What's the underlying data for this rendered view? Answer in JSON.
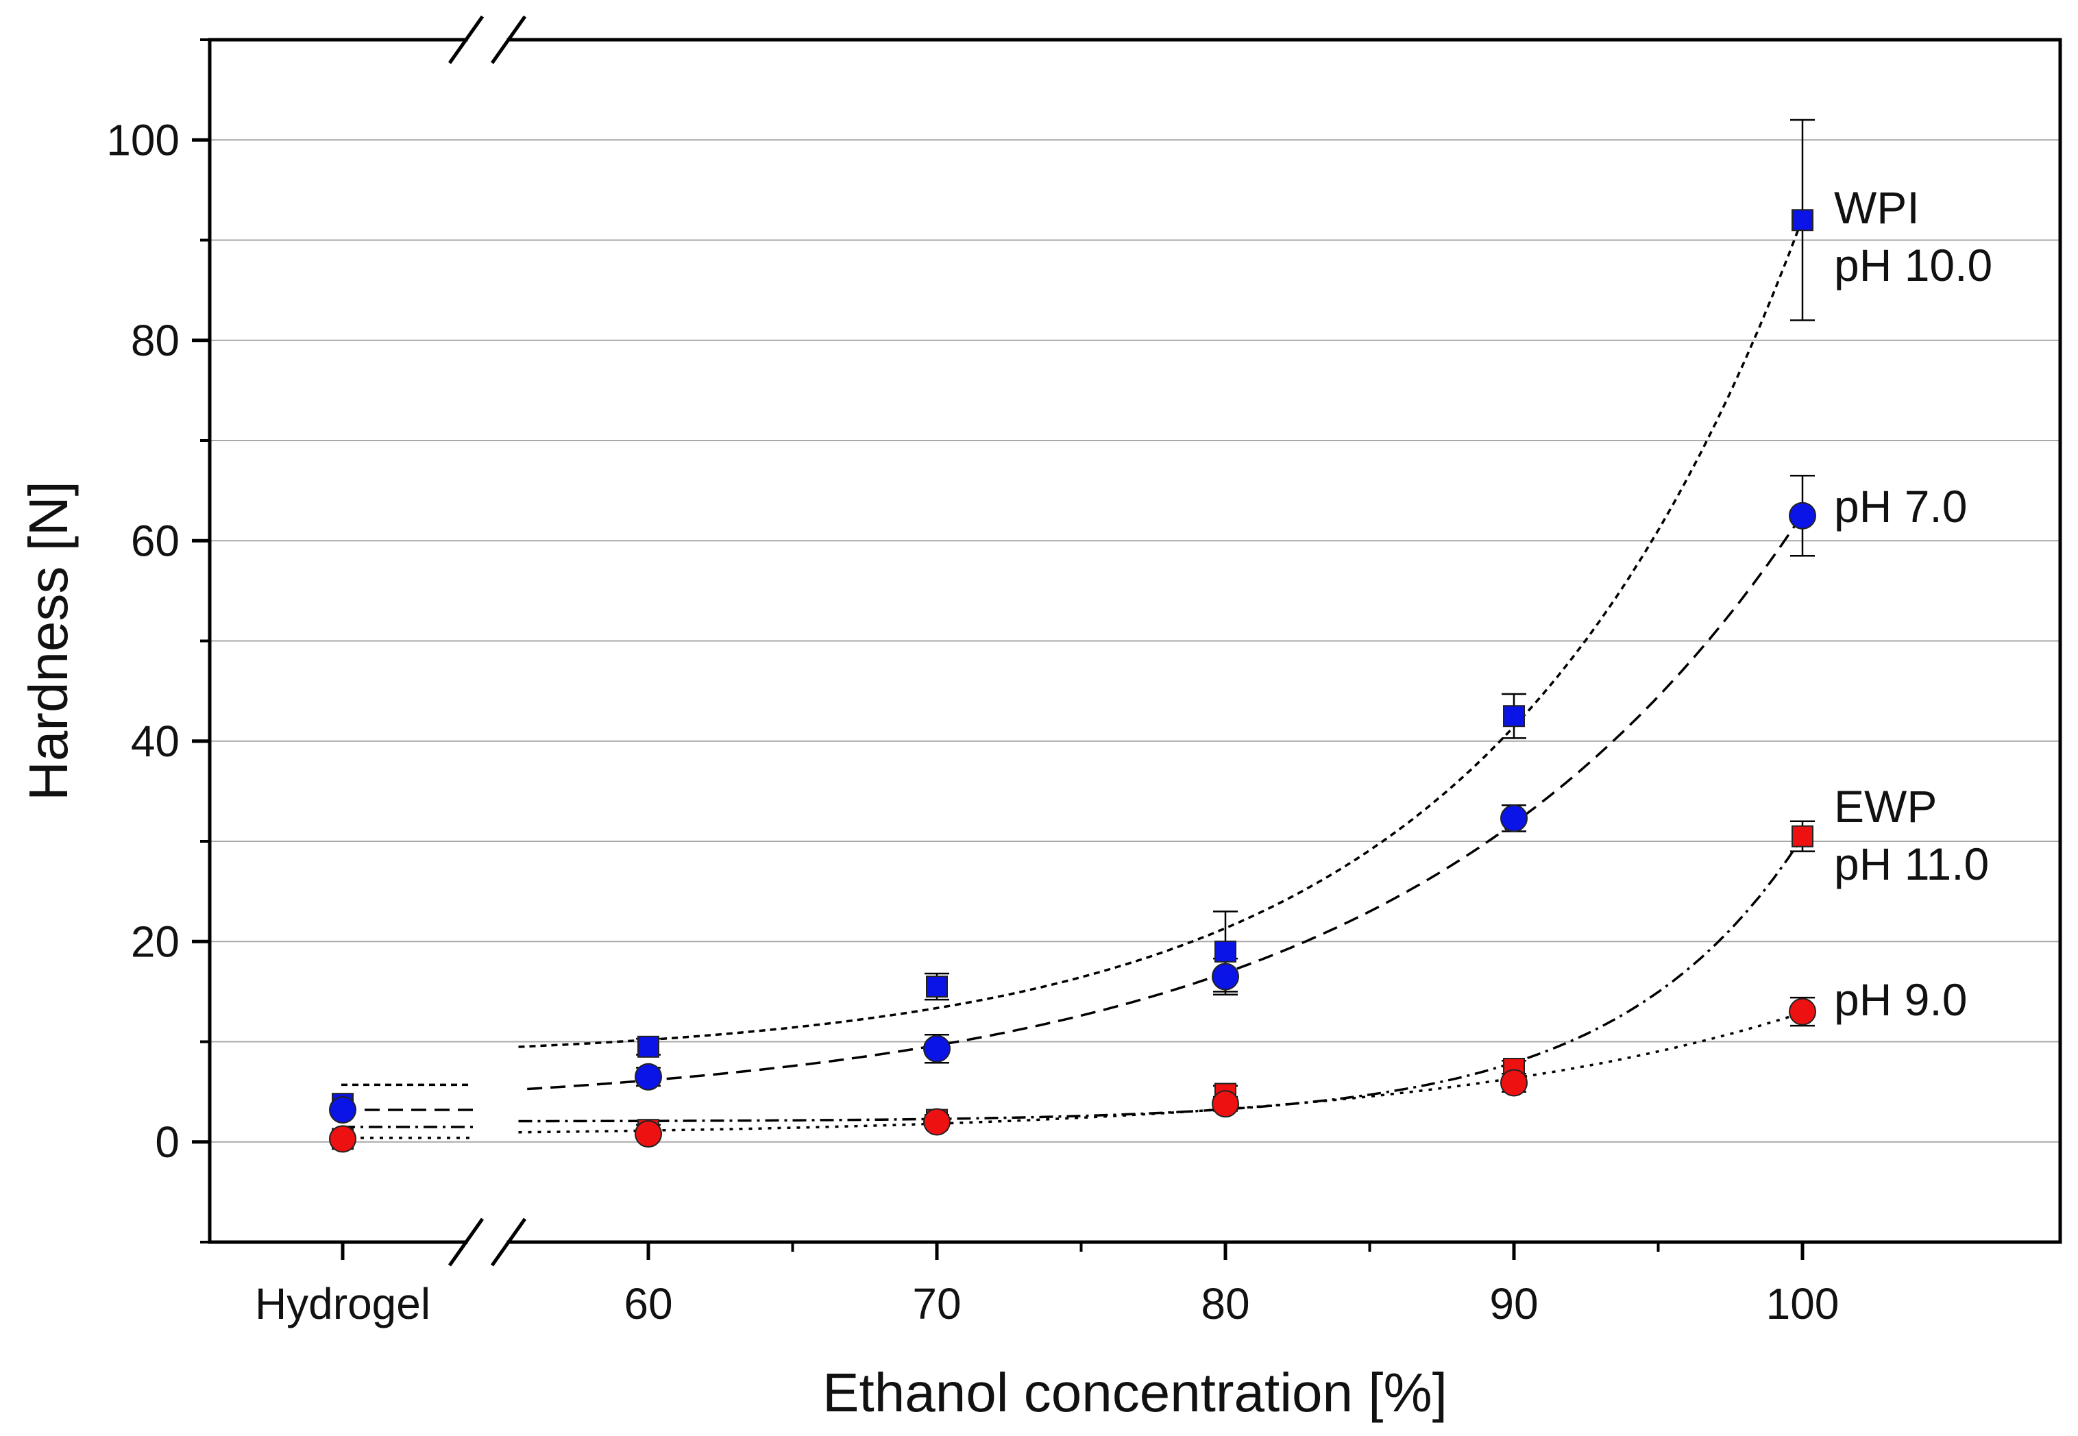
{
  "chart_data": {
    "type": "scatter",
    "xlabel": "Ethanol concentration [%]",
    "ylabel": "Hardness [N]",
    "x_tick_labels": [
      "Hydrogel",
      "60",
      "70",
      "80",
      "90",
      "100"
    ],
    "x_axis_break": true,
    "categories": [
      "Hydrogel",
      "60",
      "70",
      "80",
      "90",
      "100"
    ],
    "ylim": [
      -10,
      110
    ],
    "y_ticks": [
      0,
      20,
      40,
      60,
      80,
      100
    ],
    "y_minor_ticks": [
      -10,
      10,
      30,
      50,
      70,
      90,
      110
    ],
    "grid": "horizontal",
    "series": [
      {
        "label_lines": [
          "WPI",
          "pH 10.0"
        ],
        "marker": "square",
        "color": "#0a14e6",
        "fit_line": "short-dash",
        "hydrogel": 3.8,
        "x": [
          60,
          70,
          80,
          90,
          100
        ],
        "values": [
          9.5,
          15.5,
          19,
          42.5,
          92
        ],
        "errors": [
          0.8,
          1.3,
          4,
          2.2,
          10
        ],
        "hydrogel_level_line": 5.7
      },
      {
        "label_lines": [
          "pH 7.0"
        ],
        "marker": "circle",
        "color": "#0a14e6",
        "fit_line": "long-dash",
        "hydrogel": 3.2,
        "x": [
          60,
          70,
          80,
          90,
          100
        ],
        "values": [
          6.5,
          9.3,
          16.5,
          32.3,
          62.5
        ],
        "errors": [
          0.9,
          1.4,
          1.8,
          1.3,
          4
        ],
        "hydrogel_level_line": 3.2
      },
      {
        "label_lines": [
          "EWP",
          "pH 11.0"
        ],
        "marker": "square",
        "color": "#ee1111",
        "fit_line": "dash-dot",
        "hydrogel": 0.3,
        "x": [
          60,
          70,
          80,
          90,
          100
        ],
        "values": [
          1.2,
          2.2,
          4.8,
          7.3,
          30.5
        ],
        "errors": [
          0.5,
          0.5,
          0.8,
          0.8,
          1.5
        ],
        "hydrogel_level_line": 1.5
      },
      {
        "label_lines": [
          "pH 9.0"
        ],
        "marker": "circle",
        "color": "#ee1111",
        "fit_line": "dotted",
        "hydrogel": 0.3,
        "x": [
          60,
          70,
          80,
          90,
          100
        ],
        "values": [
          0.8,
          2.0,
          3.8,
          5.9,
          13
        ],
        "errors": [
          0.5,
          0.5,
          0.7,
          0.9,
          1.4
        ],
        "hydrogel_level_line": 0.4
      }
    ]
  }
}
